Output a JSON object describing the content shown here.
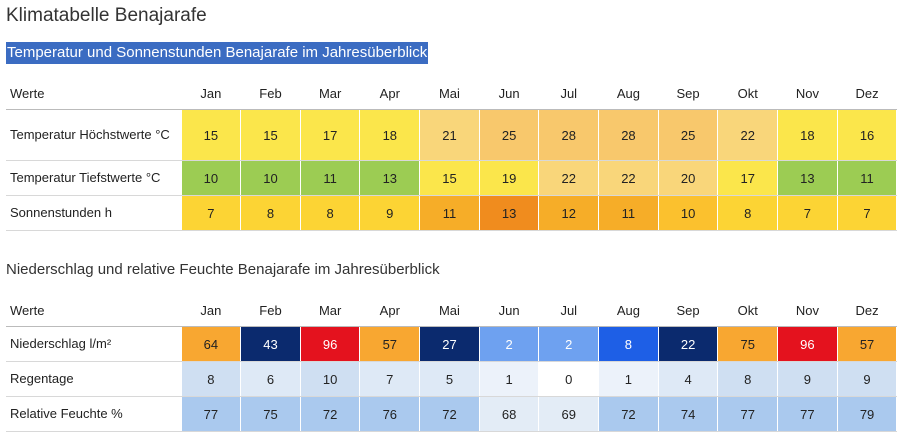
{
  "title": "Klimatabelle Benajarafe",
  "section1": {
    "heading": "Temperatur und Sonnenstunden Benajarafe im Jahresüberblick",
    "header_label": "Werte",
    "months": [
      "Jan",
      "Feb",
      "Mar",
      "Apr",
      "Mai",
      "Jun",
      "Jul",
      "Aug",
      "Sep",
      "Okt",
      "Nov",
      "Dez"
    ],
    "rows": [
      {
        "label": "Temperatur Höchstwerte °C",
        "values": [
          "15",
          "15",
          "17",
          "18",
          "21",
          "25",
          "28",
          "28",
          "25",
          "22",
          "18",
          "16"
        ],
        "colors": [
          "#fbe64b",
          "#fbe64b",
          "#fbe64b",
          "#fbe64b",
          "#f9d67a",
          "#f8c86c",
          "#f8c86c",
          "#f8c86c",
          "#f8c86c",
          "#f9d67a",
          "#fbe64b",
          "#fbe64b"
        ]
      },
      {
        "label": "Temperatur Tiefstwerte °C",
        "values": [
          "10",
          "10",
          "11",
          "13",
          "15",
          "19",
          "22",
          "22",
          "20",
          "17",
          "13",
          "11"
        ],
        "colors": [
          "#9ccc53",
          "#9ccc53",
          "#9ccc53",
          "#9ccc53",
          "#fbe64b",
          "#fbe64b",
          "#f9d67a",
          "#f9d67a",
          "#f9d67a",
          "#fbe64b",
          "#9ccc53",
          "#9ccc53"
        ]
      },
      {
        "label": "Sonnenstunden h",
        "values": [
          "7",
          "8",
          "8",
          "9",
          "11",
          "13",
          "12",
          "11",
          "10",
          "8",
          "7",
          "7"
        ],
        "colors": [
          "#fcd434",
          "#fcd434",
          "#fcd434",
          "#fcd434",
          "#f6ad28",
          "#f08c1e",
          "#f6ad28",
          "#f6ad28",
          "#fbc12e",
          "#fcd434",
          "#fcd434",
          "#fcd434"
        ]
      }
    ]
  },
  "section2": {
    "heading": "Niederschlag und relative Feuchte Benajarafe im Jahresüberblick",
    "header_label": "Werte",
    "months": [
      "Jan",
      "Feb",
      "Mar",
      "Apr",
      "Mai",
      "Jun",
      "Jul",
      "Aug",
      "Sep",
      "Okt",
      "Nov",
      "Dez"
    ],
    "rows": [
      {
        "label": "Niederschlag l/m²",
        "values": [
          "64",
          "43",
          "96",
          "57",
          "27",
          "2",
          "2",
          "8",
          "22",
          "75",
          "96",
          "57"
        ],
        "colors": [
          "#f8a731",
          "#0b2a6e",
          "#e4121e",
          "#f8a731",
          "#0b2a6e",
          "#6ea1f0",
          "#6ea1f0",
          "#1e5fe6",
          "#0b2a6e",
          "#f8a731",
          "#e4121e",
          "#f8a731"
        ],
        "light_text": [
          false,
          true,
          true,
          false,
          true,
          true,
          true,
          true,
          true,
          false,
          true,
          false
        ]
      },
      {
        "label": "Regentage",
        "values": [
          "8",
          "6",
          "10",
          "7",
          "5",
          "1",
          "0",
          "1",
          "4",
          "8",
          "9",
          "9"
        ],
        "colors": [
          "#cfdff2",
          "#dee9f6",
          "#cfdff2",
          "#dee9f6",
          "#dee9f6",
          "#ecf2fa",
          "#ffffff",
          "#ecf2fa",
          "#dee9f6",
          "#cfdff2",
          "#cfdff2",
          "#cfdff2"
        ]
      },
      {
        "label": "Relative Feuchte %",
        "values": [
          "77",
          "75",
          "72",
          "76",
          "72",
          "68",
          "69",
          "72",
          "74",
          "77",
          "77",
          "79"
        ],
        "colors": [
          "#aac9ee",
          "#aac9ee",
          "#aac9ee",
          "#aac9ee",
          "#aac9ee",
          "#e3ecf6",
          "#e3ecf6",
          "#aac9ee",
          "#aac9ee",
          "#aac9ee",
          "#aac9ee",
          "#aac9ee"
        ]
      }
    ]
  }
}
